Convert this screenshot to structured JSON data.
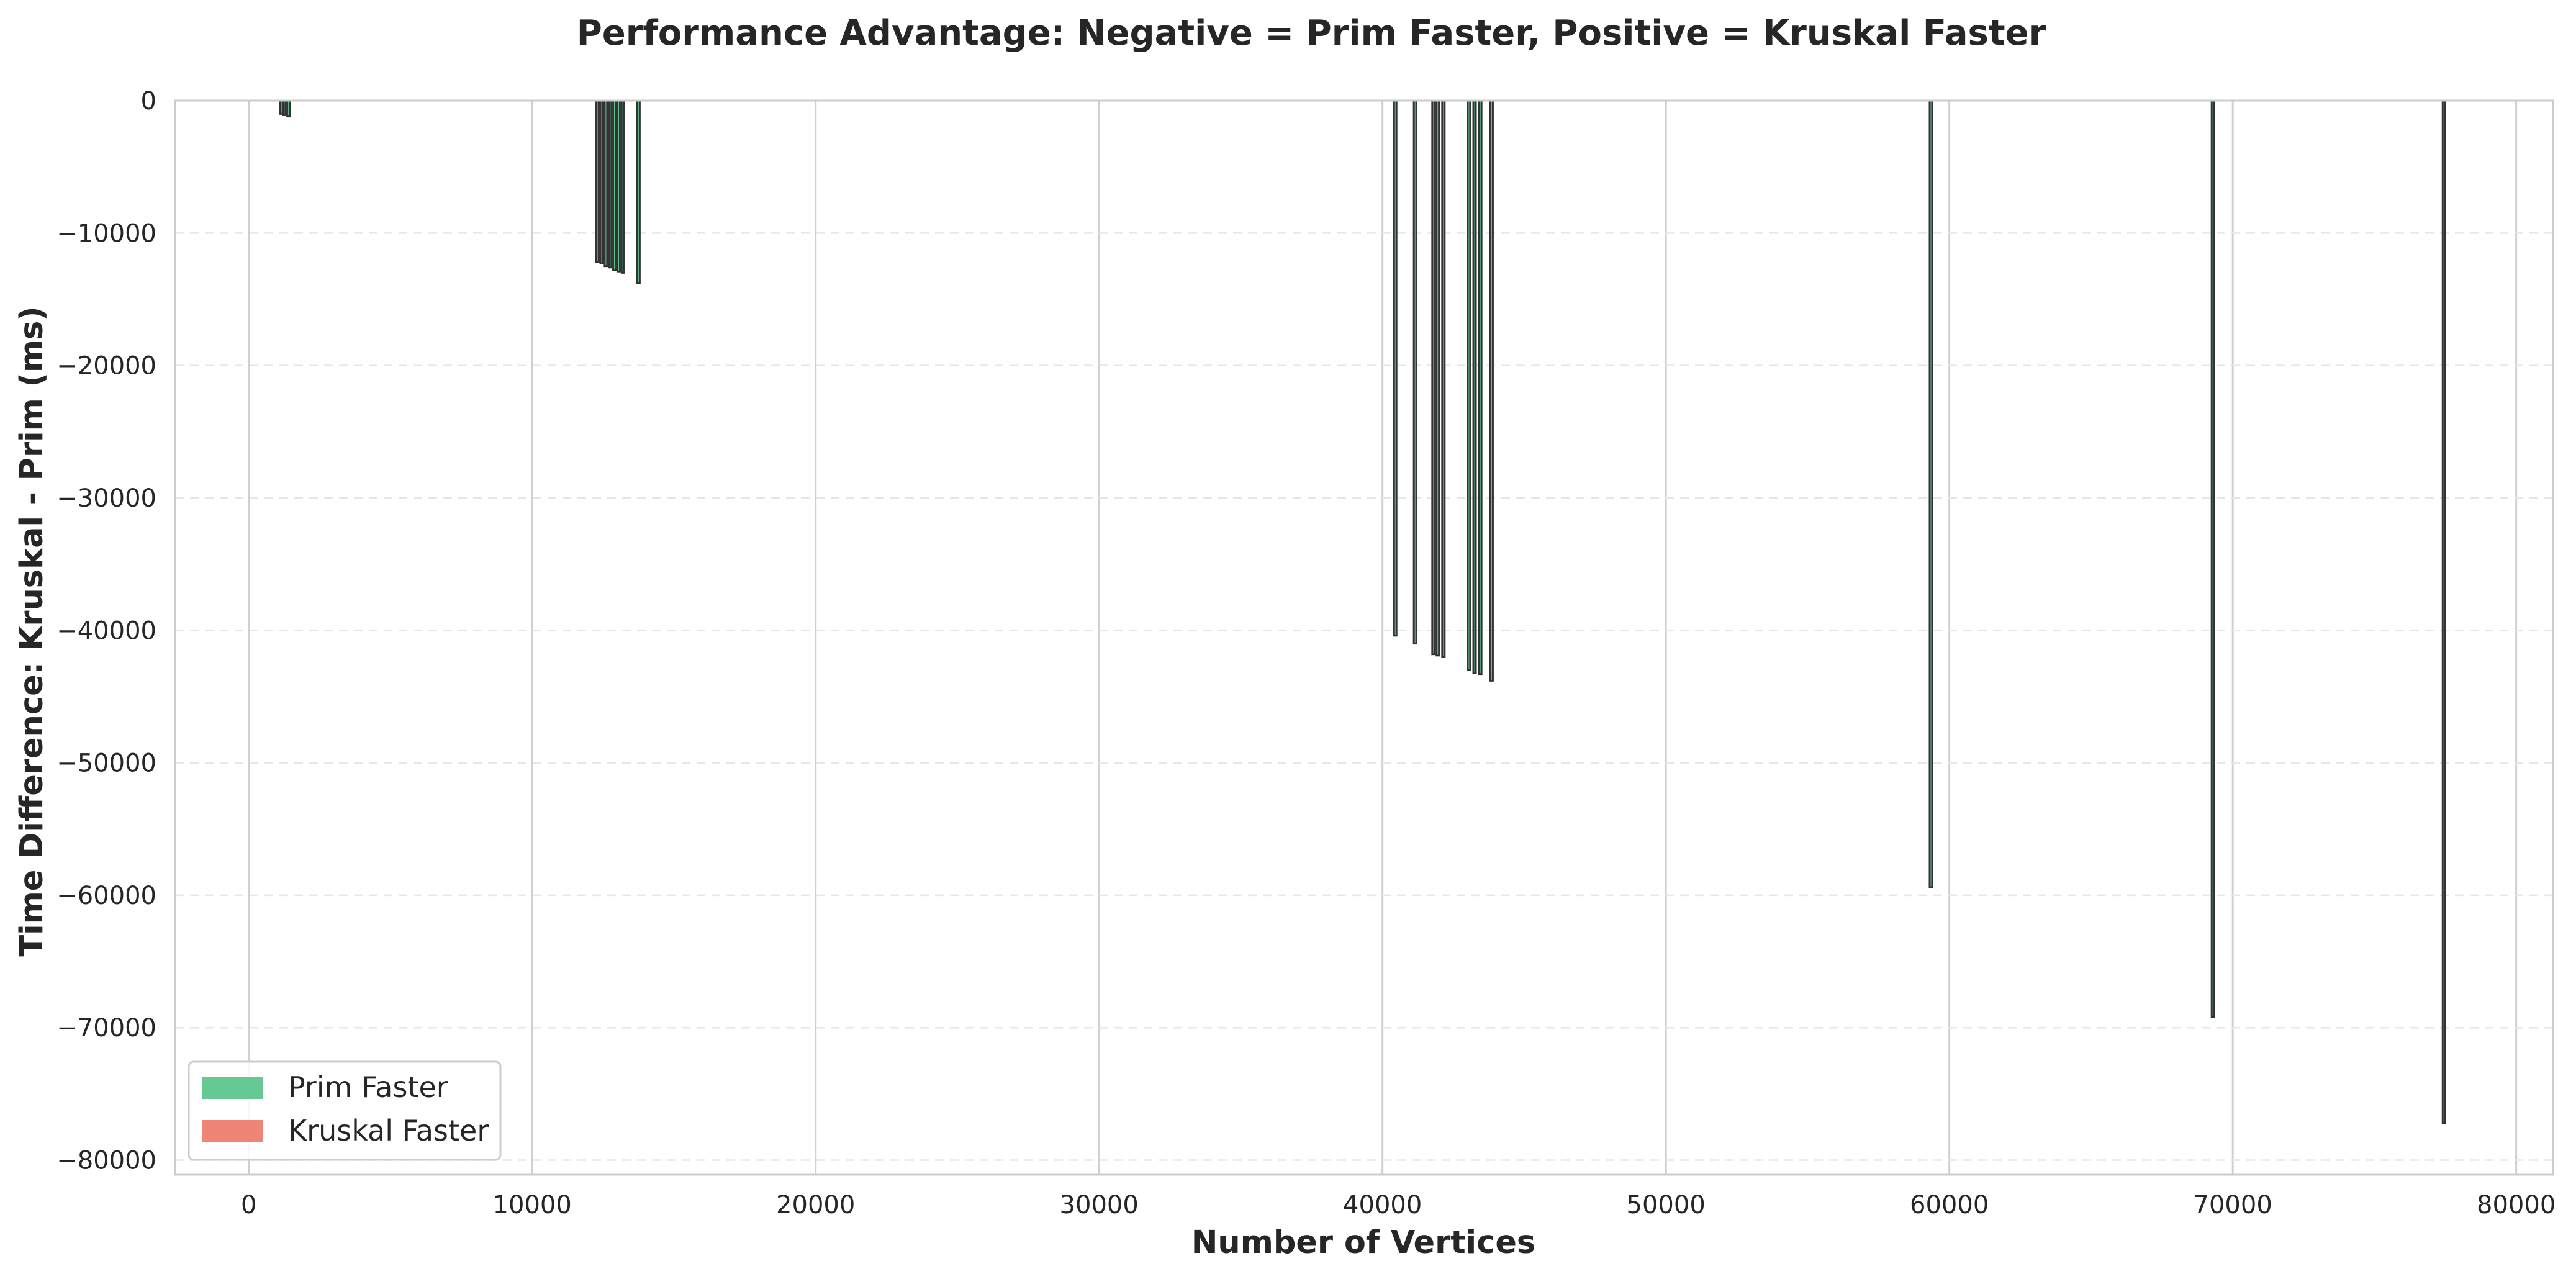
{
  "chart_data": {
    "type": "bar",
    "title": "Performance Advantage: Negative = Prim Faster, Positive = Kruskal Faster",
    "xlabel": "Number of Vertices",
    "ylabel": "Time Difference: Kruskal - Prim (ms)",
    "xlim": [
      -2600,
      81300
    ],
    "ylim": [
      -81100,
      0
    ],
    "xticks": [
      0,
      10000,
      20000,
      30000,
      40000,
      50000,
      60000,
      70000,
      80000
    ],
    "xtick_labels": [
      "0",
      "10000",
      "20000",
      "30000",
      "40000",
      "50000",
      "60000",
      "70000",
      "80000"
    ],
    "yticks": [
      0,
      -10000,
      -20000,
      -30000,
      -40000,
      -50000,
      -60000,
      -70000,
      -80000
    ],
    "ytick_labels": [
      "0",
      "−10000",
      "−20000",
      "−30000",
      "−40000",
      "−50000",
      "−60000",
      "−70000",
      "−80000"
    ],
    "grid": {
      "x": true,
      "y": true,
      "y_style": "dashed"
    },
    "legend": {
      "position": "lower-left",
      "entries": [
        {
          "label": "Prim Faster",
          "color": "#66c893"
        },
        {
          "label": "Kruskal Faster",
          "color": "#ef8576"
        }
      ]
    },
    "bar_edge_color": "#333333",
    "series": [
      {
        "x": [
          1150,
          1250,
          1400,
          12300,
          12450,
          12600,
          12750,
          12900,
          13050,
          13200,
          13750,
          40450,
          41150,
          41800,
          41950,
          42150,
          43050,
          43250,
          43450,
          43850,
          59350,
          69300,
          77450
        ],
        "values": [
          -1000,
          -1100,
          -1200,
          -12200,
          -12300,
          -12500,
          -12600,
          -12800,
          -12900,
          -13000,
          -13800,
          -40400,
          -41000,
          -41800,
          -41900,
          -42000,
          -43000,
          -43200,
          -43300,
          -43800,
          -59400,
          -69200,
          -77200
        ]
      }
    ]
  }
}
